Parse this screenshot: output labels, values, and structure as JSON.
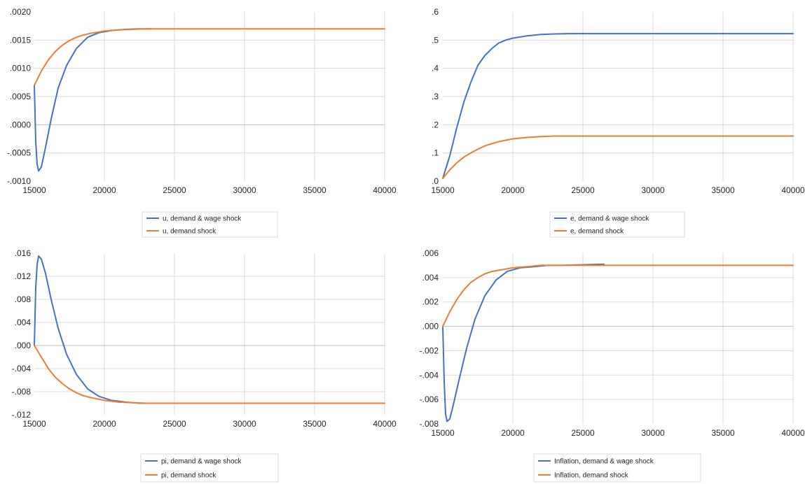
{
  "colors": {
    "blue": "#4472c4",
    "orange": "#ed7d31"
  },
  "chart_data": [
    {
      "type": "line",
      "title": "",
      "xlabel": "",
      "ylabel": "",
      "xlim": [
        15000,
        40000
      ],
      "ylim": [
        -0.001,
        0.002
      ],
      "grid": true,
      "legend_position": "bottom",
      "x_ticks": [
        "15000",
        "20000",
        "25000",
        "30000",
        "35000",
        "40000"
      ],
      "y_ticks": [
        ".0020",
        ".0015",
        ".0010",
        ".0005",
        ".0000",
        "-.0005",
        "-.0010"
      ],
      "series": [
        {
          "name": "u, demand & wage shock",
          "color": "#4472c4",
          "x": [
            15000,
            15100,
            15200,
            15300,
            15500,
            15800,
            16200,
            16700,
            17300,
            18000,
            18800,
            19600,
            20500,
            21500,
            22500,
            23300
          ],
          "y": [
            0.0007,
            -0.0003,
            -0.0007,
            -0.00082,
            -0.00075,
            -0.0004,
            0.0001,
            0.00065,
            0.00105,
            0.00135,
            0.00155,
            0.00163,
            0.00167,
            0.00169,
            0.0017,
            0.0017
          ]
        },
        {
          "name": "u, demand shock",
          "color": "#ed7d31",
          "x": [
            15000,
            15500,
            16000,
            16500,
            17000,
            17500,
            18000,
            18500,
            19000,
            20000,
            21000,
            22000,
            23000,
            25000,
            30000,
            35000,
            40000
          ],
          "y": [
            0.0007,
            0.00095,
            0.00115,
            0.0013,
            0.00141,
            0.00149,
            0.00155,
            0.00159,
            0.00162,
            0.00166,
            0.00168,
            0.00169,
            0.0017,
            0.0017,
            0.0017,
            0.0017,
            0.0017
          ]
        }
      ]
    },
    {
      "type": "line",
      "title": "",
      "xlabel": "",
      "ylabel": "",
      "xlim": [
        15000,
        40000
      ],
      "ylim": [
        0,
        0.6
      ],
      "grid": true,
      "legend_position": "bottom",
      "x_ticks": [
        "15000",
        "20000",
        "25000",
        "30000",
        "35000",
        "40000"
      ],
      "y_ticks": [
        ".6",
        ".5",
        ".4",
        ".3",
        ".2",
        ".1",
        ".0"
      ],
      "series": [
        {
          "name": "e, demand & wage shock",
          "color": "#4472c4",
          "x": [
            15000,
            15500,
            16000,
            16500,
            17000,
            17500,
            18000,
            18500,
            19000,
            19500,
            20000,
            21000,
            22000,
            23000,
            24000,
            30000,
            35000,
            40000
          ],
          "y": [
            0.01,
            0.09,
            0.19,
            0.28,
            0.35,
            0.41,
            0.445,
            0.47,
            0.49,
            0.5,
            0.507,
            0.515,
            0.52,
            0.522,
            0.523,
            0.523,
            0.523,
            0.523
          ]
        },
        {
          "name": "e, demand shock",
          "color": "#ed7d31",
          "x": [
            15000,
            15500,
            16000,
            16500,
            17000,
            17500,
            18000,
            18500,
            19000,
            20000,
            21000,
            22000,
            23000,
            25000,
            30000,
            35000,
            40000
          ],
          "y": [
            0.01,
            0.04,
            0.065,
            0.085,
            0.1,
            0.113,
            0.125,
            0.133,
            0.14,
            0.15,
            0.155,
            0.158,
            0.16,
            0.16,
            0.16,
            0.16,
            0.16
          ]
        }
      ]
    },
    {
      "type": "line",
      "title": "",
      "xlabel": "",
      "ylabel": "",
      "xlim": [
        15000,
        40000
      ],
      "ylim": [
        -0.012,
        0.016
      ],
      "grid": true,
      "legend_position": "bottom",
      "x_ticks": [
        "15000",
        "20000",
        "25000",
        "30000",
        "35000",
        "40000"
      ],
      "y_ticks": [
        ".016",
        ".012",
        ".008",
        ".004",
        ".000",
        "-.004",
        "-.008",
        "-.012"
      ],
      "series": [
        {
          "name": "pi, demand & wage shock",
          "color": "#4472c4",
          "x": [
            15000,
            15100,
            15200,
            15300,
            15500,
            15800,
            16200,
            16700,
            17300,
            18000,
            18800,
            19600,
            20500,
            21500,
            22500,
            23300
          ],
          "y": [
            0.0,
            0.01,
            0.014,
            0.0155,
            0.015,
            0.0125,
            0.008,
            0.003,
            -0.0015,
            -0.005,
            -0.0075,
            -0.0088,
            -0.0095,
            -0.0098,
            -0.01,
            -0.01
          ]
        },
        {
          "name": "pi, demand shock",
          "color": "#ed7d31",
          "x": [
            15000,
            15500,
            16000,
            16500,
            17000,
            17500,
            18000,
            18500,
            19000,
            20000,
            21000,
            22000,
            23000,
            25000,
            30000,
            35000,
            40000
          ],
          "y": [
            0.0,
            -0.002,
            -0.004,
            -0.0055,
            -0.0066,
            -0.0075,
            -0.0082,
            -0.0087,
            -0.009,
            -0.0095,
            -0.0098,
            -0.0099,
            -0.01,
            -0.01,
            -0.01,
            -0.01,
            -0.01
          ]
        }
      ]
    },
    {
      "type": "line",
      "title": "",
      "xlabel": "",
      "ylabel": "",
      "xlim": [
        15000,
        40000
      ],
      "ylim": [
        -0.008,
        0.006
      ],
      "grid": true,
      "legend_position": "bottom",
      "x_ticks": [
        "15000",
        "20000",
        "25000",
        "30000",
        "35000",
        "40000"
      ],
      "y_ticks": [
        ".006",
        ".004",
        ".002",
        ".000",
        "-.002",
        "-.004",
        "-.006",
        "-.008"
      ],
      "series": [
        {
          "name": "Inflation, demand & wage shock",
          "color": "#4472c4",
          "x": [
            15000,
            15100,
            15200,
            15300,
            15500,
            15800,
            16200,
            16700,
            17300,
            18000,
            18800,
            19600,
            20500,
            21500,
            22500,
            23500,
            26500
          ],
          "y": [
            0.0,
            -0.0045,
            -0.0072,
            -0.0078,
            -0.0076,
            -0.0062,
            -0.0042,
            -0.0018,
            0.0006,
            0.0025,
            0.0038,
            0.0045,
            0.0048,
            0.0049,
            0.005,
            0.005,
            0.0051
          ]
        },
        {
          "name": "Inflation, demand shock",
          "color": "#ed7d31",
          "x": [
            15000,
            15500,
            16000,
            16500,
            17000,
            17500,
            18000,
            18500,
            19000,
            20000,
            21000,
            22000,
            23000,
            25000,
            30000,
            35000,
            40000
          ],
          "y": [
            0.0,
            0.0012,
            0.0022,
            0.003,
            0.0036,
            0.004,
            0.0043,
            0.0045,
            0.0046,
            0.0048,
            0.0049,
            0.005,
            0.005,
            0.005,
            0.005,
            0.005,
            0.005
          ]
        }
      ]
    }
  ]
}
